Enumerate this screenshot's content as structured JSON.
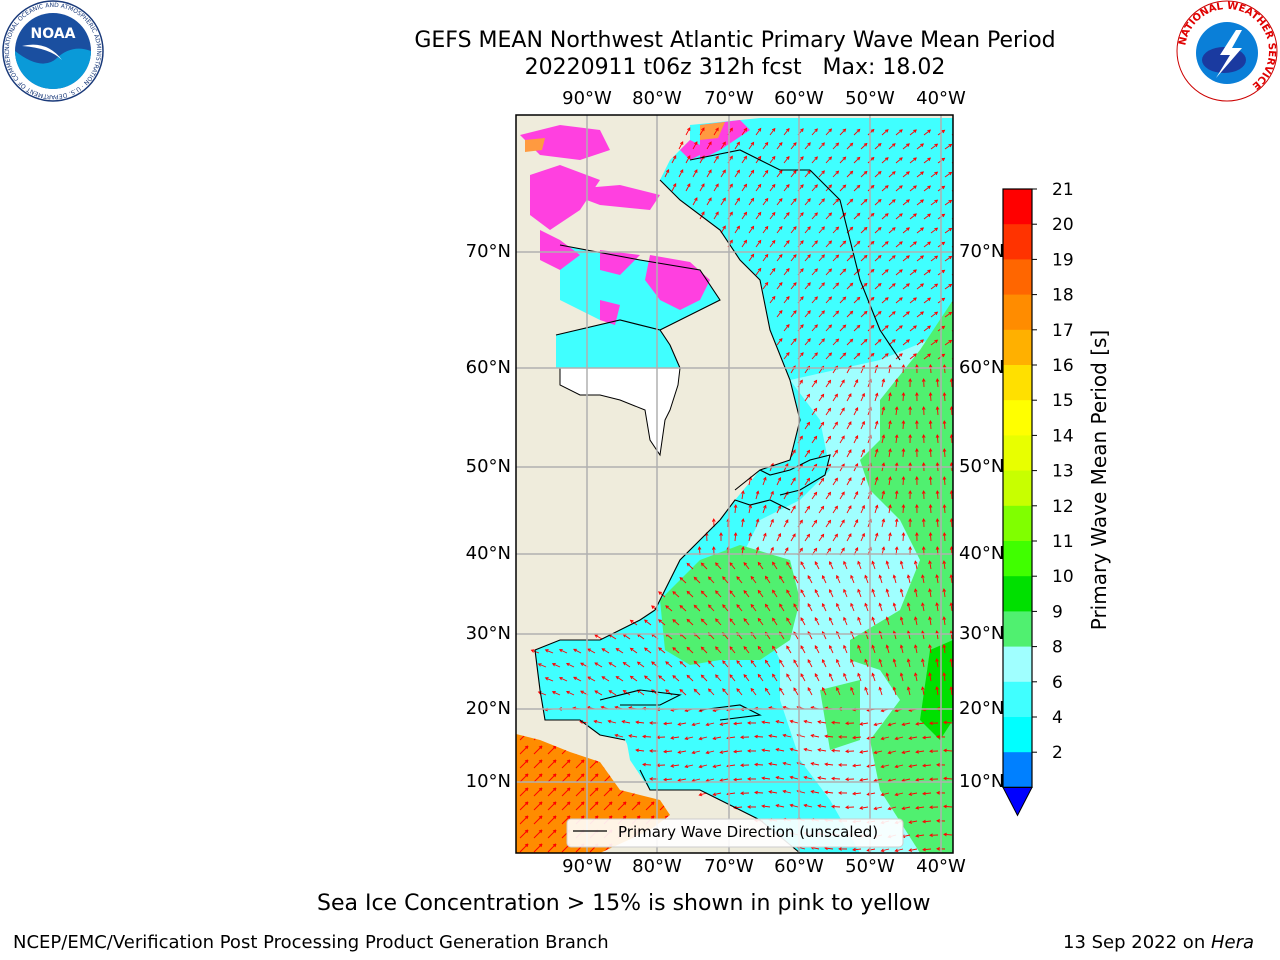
{
  "header": {
    "title_line1": "GEFS MEAN Northwest Atlantic Primary Wave Mean Period",
    "title_line2": "20220911 t06z 312h fcst   Max: 18.02"
  },
  "map": {
    "lon_labels": [
      "90°W",
      "80°W",
      "70°W",
      "60°W",
      "50°W",
      "40°W"
    ],
    "lat_labels": [
      "70°N",
      "60°N",
      "50°N",
      "40°N",
      "30°N",
      "20°N",
      "10°N"
    ],
    "legend_label": "Primary Wave Direction (unscaled)",
    "colors": {
      "land": "#efecdc",
      "ocean_low": "#40ffff",
      "ocean_mid": "#a0ffff",
      "ocean_green": "#50f070",
      "ocean_deep_green": "#00e000",
      "tropics": "#ff8c00",
      "sea_ice": "#ff40e0",
      "arrow": "#ff0000",
      "grid": "#b0b0b0"
    }
  },
  "colorbar": {
    "title": "Primary Wave Mean Period [s]",
    "tick_labels": [
      "21",
      "20",
      "19",
      "18",
      "17",
      "16",
      "15",
      "14",
      "13",
      "12",
      "11",
      "10",
      "9",
      "8",
      "6",
      "4",
      "2"
    ],
    "colors": [
      "#ff0000",
      "#ff3300",
      "#ff6600",
      "#ff8c00",
      "#ffb000",
      "#ffe000",
      "#ffff00",
      "#e8ff00",
      "#c8ff00",
      "#80ff00",
      "#40ff00",
      "#00e000",
      "#50f070",
      "#a0ffff",
      "#40ffff",
      "#00ffff",
      "#0080ff"
    ],
    "under_color": "#0000ff"
  },
  "footer": {
    "subtitle": "Sea Ice Concentration > 15% is shown in pink to yellow",
    "org": "NCEP/EMC/Verification Post Processing Product Generation Branch",
    "date_prefix": "13 Sep 2022 on ",
    "date_host": "Hera"
  },
  "logos": {
    "noaa_text": "NOAA",
    "noaa_ring": "NATIONAL OCEANIC AND ATMOSPHERIC ADMINISTRATION · U.S. DEPARTMENT OF COMMERCE",
    "nws_ring": "NATIONAL WEATHER SERVICE"
  }
}
